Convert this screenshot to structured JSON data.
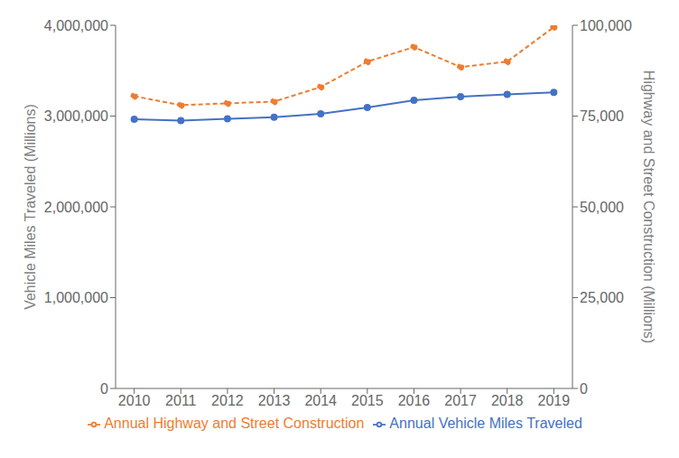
{
  "chart_data": {
    "type": "line",
    "x": [
      2010,
      2011,
      2012,
      2013,
      2014,
      2015,
      2016,
      2017,
      2018,
      2019
    ],
    "xlim": [
      2009.6,
      2019.4
    ],
    "xticks": [
      2010,
      2011,
      2012,
      2013,
      2014,
      2015,
      2016,
      2017,
      2018,
      2019
    ],
    "ylabel": "Vehicle Miles Traveled (Millions)",
    "y2label": "Highway and Street Construction (Millions)",
    "ylim": [
      0,
      4000000
    ],
    "yticks": [
      0,
      {
        "value": 1000000,
        "label": "1,000,000"
      },
      {
        "value": 2000000,
        "label": "2,000,000"
      },
      {
        "value": 3000000,
        "label": "3,000,000"
      },
      {
        "value": 4000000,
        "label": "4,000,000"
      }
    ],
    "y2lim": [
      0,
      100000
    ],
    "y2ticks": [
      0,
      {
        "value": 25000,
        "label": "25,000"
      },
      {
        "value": 50000,
        "label": "50,000"
      },
      {
        "value": 75000,
        "label": "75,000"
      },
      {
        "value": 100000,
        "label": "100,000"
      }
    ],
    "grid": false,
    "legend": "bottom",
    "series": [
      {
        "name": "Annual Vehicle Miles Traveled",
        "color": "#4472c4",
        "marker": "circle",
        "line_style": "solid",
        "values": [
          2966000,
          2950000,
          2969000,
          2988000,
          3026000,
          3095000,
          3174000,
          3213000,
          3240000,
          3261000
        ]
      },
      {
        "name": "Annual Highway and Street Construction",
        "color": "#ed7d31",
        "marker": "circle",
        "line_style": "dashed",
        "axis": "y2",
        "values": [
          80500,
          78000,
          78500,
          79000,
          83000,
          90000,
          94000,
          88500,
          90000,
          99500
        ]
      }
    ]
  }
}
